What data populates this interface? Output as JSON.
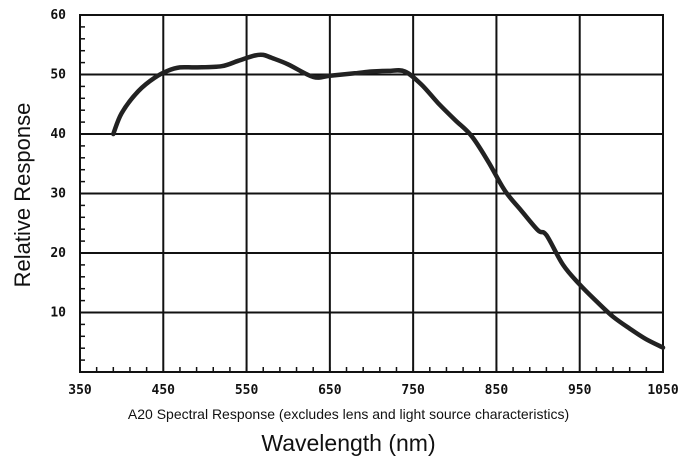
{
  "chart_data": {
    "type": "line",
    "subtitle": "A20 Spectral Response (excludes lens and light source characteristics)",
    "xlabel": "Wavelength (nm)",
    "ylabel": "Relative Response",
    "xlim": [
      350,
      1050
    ],
    "ylim": [
      0,
      60
    ],
    "xticks": [
      350,
      450,
      550,
      650,
      750,
      850,
      950,
      1050
    ],
    "yticks": [
      10,
      20,
      30,
      40,
      50,
      60
    ],
    "grid": true,
    "legend": "none",
    "line_color": "#222222",
    "series": [
      {
        "x": [
          390,
          400,
          420,
          440,
          455,
          470,
          490,
          520,
          540,
          560,
          570,
          580,
          600,
          630,
          650,
          680,
          700,
          720,
          740,
          760,
          780,
          800,
          820,
          840,
          860,
          880,
          900,
          910,
          930,
          950,
          970,
          990,
          1010,
          1030,
          1050
        ],
        "y": [
          40,
          43.5,
          47.2,
          49.5,
          50.6,
          51.2,
          51.2,
          51.4,
          52.3,
          53.2,
          53.3,
          52.8,
          51.7,
          49.6,
          49.8,
          50.2,
          50.5,
          50.6,
          50.5,
          48.3,
          45.2,
          42.4,
          39.7,
          35.4,
          30.5,
          27.1,
          23.8,
          23,
          18,
          14.7,
          11.9,
          9.3,
          7.3,
          5.5,
          4.1
        ]
      }
    ]
  }
}
